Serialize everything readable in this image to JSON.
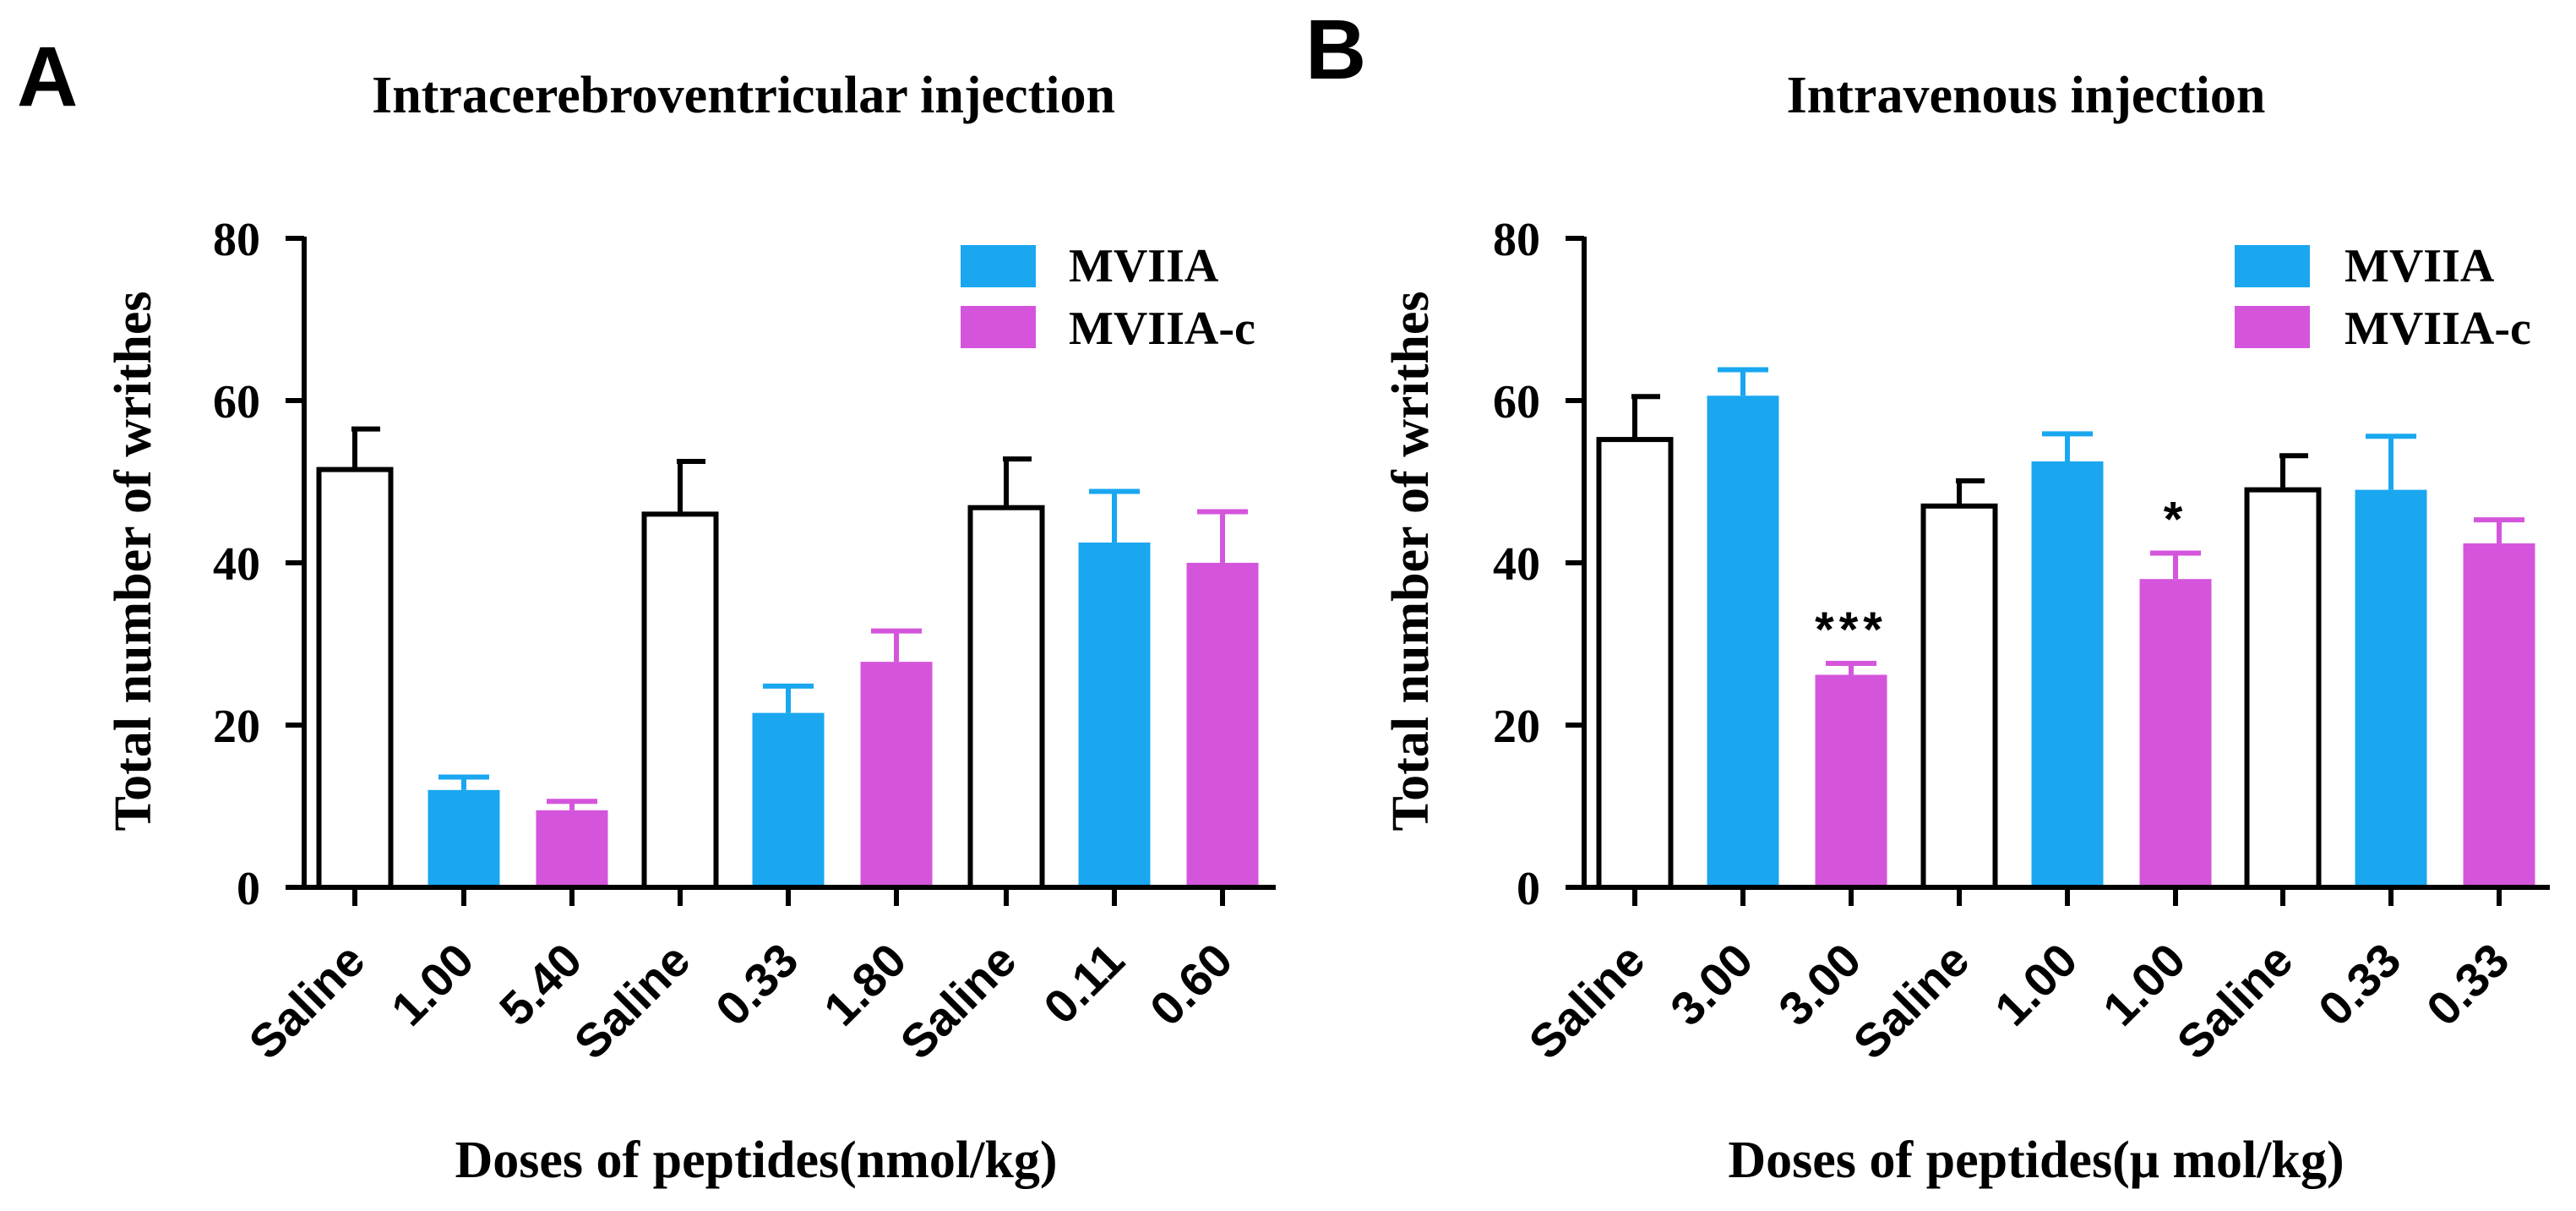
{
  "chart_data": [
    {
      "panel_label": "A",
      "type": "bar",
      "title": "Intracerebroventricular injection",
      "ylabel": "Total number of writhes",
      "xlabel": "Doses of peptides(nmol/kg)",
      "ylim": [
        0,
        80
      ],
      "yticks": [
        "0",
        "20",
        "40",
        "60",
        "80"
      ],
      "legend": [
        {
          "name": "MVIIA",
          "color": "#1AA7F0"
        },
        {
          "name": "MVIIA-c",
          "color": "#D455DC"
        }
      ],
      "categories": [
        "Saline",
        "1.00",
        "5.40",
        "Saline",
        "0.33",
        "1.80",
        "Saline",
        "0.11",
        "0.60"
      ],
      "groups": [
        "saline",
        "MVIIA",
        "MVIIA-c",
        "saline",
        "MVIIA",
        "MVIIA-c",
        "saline",
        "MVIIA",
        "MVIIA-c"
      ],
      "values": [
        51.5,
        12.0,
        9.5,
        46.0,
        21.5,
        27.8,
        46.8,
        42.5,
        40.0
      ],
      "errors": [
        5.0,
        1.6,
        1.1,
        6.5,
        3.3,
        3.8,
        6.0,
        6.3,
        6.3
      ],
      "significance": [
        "",
        "",
        "",
        "",
        "",
        "",
        "",
        "",
        ""
      ]
    },
    {
      "panel_label": "B",
      "type": "bar",
      "title": "Intravenous injection",
      "ylabel": "Total number of writhes",
      "xlabel": "Doses of peptides(μ mol/kg)",
      "ylim": [
        0,
        80
      ],
      "yticks": [
        "0",
        "20",
        "40",
        "60",
        "80"
      ],
      "legend": [
        {
          "name": "MVIIA",
          "color": "#1AA7F0"
        },
        {
          "name": "MVIIA-c",
          "color": "#D455DC"
        }
      ],
      "categories": [
        "Saline",
        "3.00",
        "3.00",
        "Saline",
        "1.00",
        "1.00",
        "Saline",
        "0.33",
        "0.33"
      ],
      "groups": [
        "saline",
        "MVIIA",
        "MVIIA-c",
        "saline",
        "MVIIA",
        "MVIIA-c",
        "saline",
        "MVIIA",
        "MVIIA-c"
      ],
      "values": [
        55.2,
        60.6,
        26.2,
        47.0,
        52.5,
        38.0,
        49.0,
        49.0,
        42.4
      ],
      "errors": [
        5.3,
        3.2,
        1.4,
        3.1,
        3.4,
        3.2,
        4.2,
        6.6,
        2.9
      ],
      "significance": [
        "",
        "",
        "***",
        "",
        "",
        "*",
        "",
        "",
        ""
      ]
    }
  ]
}
